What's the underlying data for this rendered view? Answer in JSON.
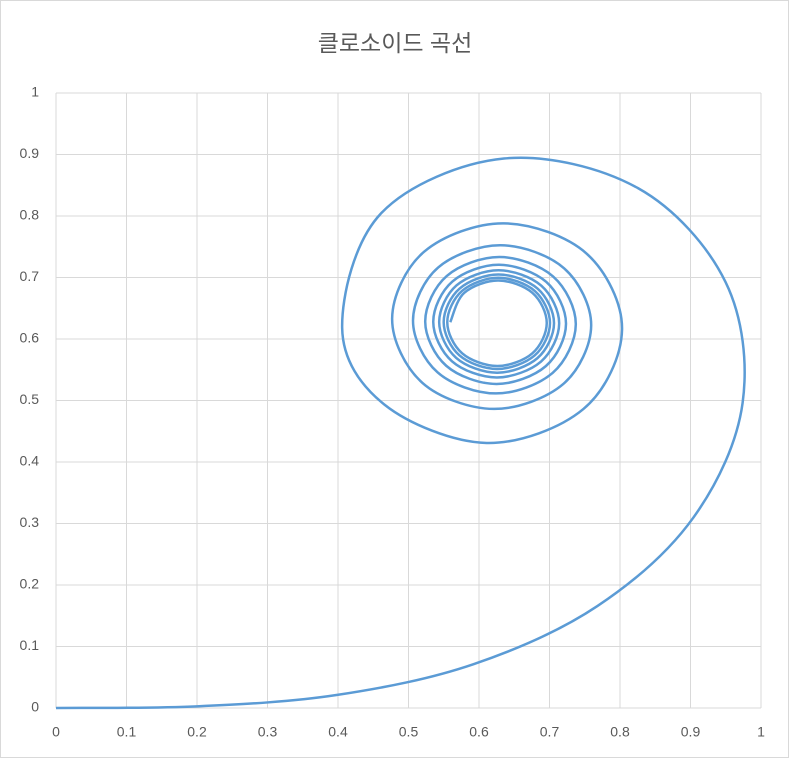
{
  "chart_data": {
    "type": "line",
    "title": "클로소이드 곡선",
    "x": [
      0,
      0.2,
      0.399,
      0.5923,
      0.7679,
      0.9045,
      0.9739,
      0.9498,
      0.8255,
      0.6354,
      0.4615,
      0.4059,
      0.4659,
      0.6108,
      0.7482,
      0.8029,
      0.7527,
      0.6353,
      0.5222,
      0.4768,
      0.5198,
      0.621,
      0.7194,
      0.7591,
      0.7209,
      0.6307,
      0.5422,
      0.5064,
      0.5412,
      0.6236,
      0.7044,
      0.7373,
      0.7052,
      0.6291,
      0.5542,
      0.5237,
      0.5535,
      0.6247,
      0.6948,
      0.7234,
      0.6953,
      0.6283,
      0.5622,
      0.5351,
      0.5617,
      0.6252,
      0.688,
      0.7137,
      0.6884,
      0.6279,
      0.568,
      0.5435,
      0.5677,
      0.6256,
      0.6829,
      0.7064,
      0.6832,
      0.6276,
      0.5725,
      0.5499,
      0.5722,
      0.6258,
      0.6789,
      0.7007,
      0.6792,
      0.6274,
      0.5761,
      0.555,
      0.5759,
      0.626,
      0.6757,
      0.6961,
      0.6759,
      0.6273,
      0.5791,
      0.5592
    ],
    "series": [
      {
        "color": "#5b9bd5",
        "values": [
          0,
          0.0027,
          0.0213,
          0.0713,
          0.1657,
          0.3103,
          0.4961,
          0.6924,
          0.8453,
          0.8935,
          0.8048,
          0.6182,
          0.4933,
          0.431,
          0.4863,
          0.6153,
          0.7388,
          0.7881,
          0.7419,
          0.6335,
          0.5286,
          0.4863,
          0.5267,
          0.622,
          0.7148,
          0.7524,
          0.7164,
          0.6301,
          0.5458,
          0.5115,
          0.5448,
          0.6239,
          0.7016,
          0.7333,
          0.7024,
          0.6288,
          0.5565,
          0.5269,
          0.5559,
          0.6248,
          0.6929,
          0.7207,
          0.6934,
          0.6282,
          0.5638,
          0.5375,
          0.5634,
          0.6253,
          0.6866,
          0.7117,
          0.687,
          0.6278,
          0.5693,
          0.5452,
          0.5689,
          0.6256,
          0.6818,
          0.7049,
          0.6821,
          0.6276,
          0.5735,
          0.5513,
          0.5732,
          0.6258,
          0.678,
          0.6995,
          0.6783,
          0.6274,
          0.5769,
          0.5561,
          0.5767,
          0.626,
          0.6749,
          0.6951,
          0.6751,
          0.6273
        ]
      }
    ],
    "xlim": [
      0,
      1
    ],
    "xticks": [
      0,
      0.1,
      0.2,
      0.3,
      0.4,
      0.5,
      0.6,
      0.7,
      0.8,
      0.9,
      1
    ],
    "ylim": [
      0,
      1
    ],
    "yticks": [
      0,
      0.1,
      0.2,
      0.3,
      0.4,
      0.5,
      0.6,
      0.7,
      0.8,
      0.9,
      1
    ],
    "grid": true
  }
}
